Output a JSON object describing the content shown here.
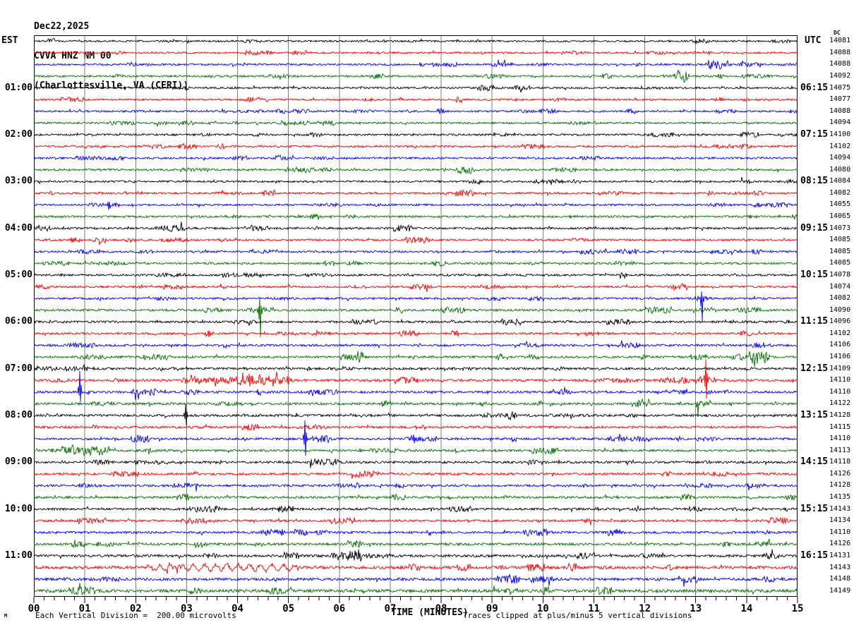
{
  "header": {
    "date": "Dec22,2025",
    "station": "CVVA HNZ NM 00",
    "location": "(Charlottesville, VA (CERI))"
  },
  "left_axis": {
    "header": "EST"
  },
  "right_axis": {
    "header": "UTC",
    "dc_header": "DC"
  },
  "x_axis": {
    "title": "TIME (MINUTES)",
    "tick_labels": [
      "00",
      "01",
      "02",
      "03",
      "04",
      "05",
      "06",
      "07",
      "08",
      "09",
      "10",
      "11",
      "12",
      "13",
      "14",
      "15"
    ],
    "minor_tick_step_minutes": 0.2
  },
  "footer": {
    "mark": "M",
    "scale_note": "Each Vertical Division =  200.00 microvolts",
    "clip_note": "Traces clipped at plus/minus 5 vertical divisions"
  },
  "colors": {
    "trace_cycle": [
      "#000000",
      "#ff0000",
      "#0000ff",
      "#007000"
    ],
    "grid": "#7d7d7d",
    "border": "#000000",
    "background": "#ffffff",
    "text": "#000000"
  },
  "chart_data": {
    "type": "line",
    "subtype": "helicorder-seismogram",
    "x_range_minutes": [
      0,
      15
    ],
    "minutes_per_row": 15,
    "rows_count": 48,
    "trace_color_order": [
      "black",
      "red",
      "blue",
      "green"
    ],
    "rows": [
      {
        "dc": 14081,
        "amp": 1.3,
        "events": [
          {
            "type": "burst",
            "t0": 14.5,
            "t1": 14.85,
            "amp": 3
          }
        ]
      },
      {
        "dc": 14088,
        "amp": 1.3,
        "events": [
          {
            "type": "burst",
            "t0": 1.6,
            "t1": 1.8,
            "amp": 3.5
          },
          {
            "type": "burst",
            "t0": 12.6,
            "t1": 12.85,
            "amp": 3
          },
          {
            "type": "burst",
            "t0": 13.15,
            "t1": 13.3,
            "amp": 3
          }
        ]
      },
      {
        "dc": 14088,
        "amp": 1.3,
        "events": [
          {
            "type": "burst",
            "t0": 11.8,
            "t1": 11.95,
            "amp": 3
          },
          {
            "type": "burst",
            "t0": 13.25,
            "t1": 13.7,
            "amp": 3.5
          }
        ]
      },
      {
        "dc": 14092,
        "amp": 1.3,
        "events": [
          {
            "type": "burst",
            "t0": 1.5,
            "t1": 1.7,
            "amp": 3
          },
          {
            "type": "burst",
            "t0": 12.3,
            "t1": 12.85,
            "amp": 3
          }
        ]
      },
      {
        "dc": 14075,
        "est": "01:00",
        "utc": "06:15",
        "amp": 1.3,
        "events": [
          {
            "type": "burst",
            "t0": 11.9,
            "t1": 12.3,
            "amp": 2.5
          }
        ]
      },
      {
        "dc": 14077,
        "amp": 1.3,
        "events": [
          {
            "type": "burst",
            "t0": 13.35,
            "t1": 13.55,
            "amp": 4
          },
          {
            "type": "burst",
            "t0": 13.9,
            "t1": 14.05,
            "amp": 3
          }
        ]
      },
      {
        "dc": 14088,
        "amp": 1.3,
        "events": [
          {
            "type": "burst",
            "t0": 13.4,
            "t1": 13.8,
            "amp": 3
          }
        ]
      },
      {
        "dc": 14094,
        "amp": 1.3,
        "events": []
      },
      {
        "dc": 14100,
        "est": "02:00",
        "utc": "07:15",
        "amp": 1.35,
        "events": [
          {
            "type": "burst",
            "t0": 9.0,
            "t1": 9.3,
            "amp": 2.5
          }
        ]
      },
      {
        "dc": 14102,
        "amp": 1.4,
        "events": [
          {
            "type": "burst",
            "t0": 13.3,
            "t1": 13.75,
            "amp": 3.5
          }
        ]
      },
      {
        "dc": 14094,
        "amp": 1.4,
        "events": []
      },
      {
        "dc": 14080,
        "amp": 1.4,
        "events": [
          {
            "type": "burst",
            "t0": 8.3,
            "t1": 8.6,
            "amp": 3
          }
        ]
      },
      {
        "dc": 14084,
        "est": "03:00",
        "utc": "08:15",
        "amp": 1.4,
        "events": [
          {
            "type": "burst",
            "t0": 13.9,
            "t1": 14.1,
            "amp": 3
          }
        ]
      },
      {
        "dc": 14082,
        "amp": 1.4,
        "events": [
          {
            "type": "burst",
            "t0": 14.15,
            "t1": 14.35,
            "amp": 4
          }
        ]
      },
      {
        "dc": 14055,
        "amp": 1.4,
        "events": [
          {
            "type": "burst",
            "t0": 1.45,
            "t1": 1.6,
            "amp": 4
          },
          {
            "type": "burst",
            "t0": 13.2,
            "t1": 13.4,
            "amp": 3.5
          }
        ]
      },
      {
        "dc": 14065,
        "amp": 1.4,
        "events": [
          {
            "type": "burst",
            "t0": 14.0,
            "t1": 14.2,
            "amp": 3.5
          }
        ]
      },
      {
        "dc": 14073,
        "est": "04:00",
        "utc": "09:15",
        "amp": 1.45,
        "events": [
          {
            "type": "burst",
            "t0": 0.0,
            "t1": 0.35,
            "amp": 5
          }
        ]
      },
      {
        "dc": 14085,
        "amp": 1.4,
        "events": []
      },
      {
        "dc": 14085,
        "amp": 1.4,
        "events": []
      },
      {
        "dc": 14085,
        "amp": 1.4,
        "events": [
          {
            "type": "burst",
            "t0": 8.8,
            "t1": 9.0,
            "amp": 3
          }
        ]
      },
      {
        "dc": 14078,
        "est": "05:00",
        "utc": "10:15",
        "amp": 1.45,
        "events": []
      },
      {
        "dc": 14074,
        "amp": 1.45,
        "events": [
          {
            "type": "burst",
            "t0": 0.05,
            "t1": 0.3,
            "amp": 4
          }
        ]
      },
      {
        "dc": 14082,
        "amp": 1.5,
        "events": [
          {
            "type": "burst",
            "t0": 4.6,
            "t1": 5.1,
            "amp": 2.5
          },
          {
            "type": "burst",
            "t0": 12.9,
            "t1": 13.3,
            "amp": 4
          },
          {
            "type": "spike",
            "t": 13.12,
            "up": 10,
            "down": 32
          }
        ]
      },
      {
        "dc": 14090,
        "amp": 1.5,
        "events": [
          {
            "type": "burst",
            "t0": 4.2,
            "t1": 4.7,
            "amp": 5
          },
          {
            "type": "spike",
            "t": 4.44,
            "up": 18,
            "down": 38
          },
          {
            "type": "burst",
            "t0": 12.95,
            "t1": 13.35,
            "amp": 5
          }
        ]
      },
      {
        "dc": 14096,
        "est": "06:00",
        "utc": "11:15",
        "amp": 1.5,
        "events": [
          {
            "type": "burst",
            "t0": 0.25,
            "t1": 0.7,
            "amp": 2.5
          }
        ]
      },
      {
        "dc": 14102,
        "amp": 1.55,
        "events": [
          {
            "type": "burst",
            "t0": 3.35,
            "t1": 3.6,
            "amp": 4
          },
          {
            "type": "burst",
            "t0": 10.85,
            "t1": 11.1,
            "amp": 4
          },
          {
            "type": "burst",
            "t0": 13.85,
            "t1": 14.1,
            "amp": 5
          }
        ]
      },
      {
        "dc": 14106,
        "amp": 1.55,
        "events": [
          {
            "type": "burst",
            "t0": 3.6,
            "t1": 3.9,
            "amp": 3
          },
          {
            "type": "burst",
            "t0": 14.1,
            "t1": 14.35,
            "amp": 5
          }
        ]
      },
      {
        "dc": 14106,
        "amp": 1.6,
        "events": [
          {
            "type": "burst",
            "t0": 6.3,
            "t1": 6.6,
            "amp": 3
          },
          {
            "type": "burst",
            "t0": 14.05,
            "t1": 14.45,
            "amp": 12
          }
        ]
      },
      {
        "dc": 14109,
        "est": "07:00",
        "utc": "12:15",
        "amp": 1.6,
        "events": [
          {
            "type": "burst",
            "t0": 0.0,
            "t1": 0.45,
            "amp": 4
          },
          {
            "type": "burst",
            "t0": 8.4,
            "t1": 8.7,
            "amp": 3
          }
        ]
      },
      {
        "dc": 14110,
        "amp": 1.7,
        "events": [
          {
            "type": "burst",
            "t0": 2.9,
            "t1": 5.1,
            "amp": 7
          },
          {
            "type": "burst",
            "t0": 4.0,
            "t1": 4.8,
            "amp": 9
          },
          {
            "type": "burst",
            "t0": 11.0,
            "t1": 12.0,
            "amp": 4
          },
          {
            "type": "burst",
            "t0": 12.95,
            "t1": 13.4,
            "amp": 6
          },
          {
            "type": "spike",
            "t": 13.2,
            "up": 30,
            "down": 26
          }
        ]
      },
      {
        "dc": 14110,
        "amp": 1.6,
        "events": [
          {
            "type": "spike",
            "t": 0.9,
            "up": 30,
            "down": 14
          },
          {
            "type": "burst",
            "t0": 6.6,
            "t1": 6.9,
            "amp": 3
          },
          {
            "type": "burst",
            "t0": 12.55,
            "t1": 12.85,
            "amp": 5
          },
          {
            "type": "burst",
            "t0": 13.5,
            "t1": 13.7,
            "amp": 4
          }
        ]
      },
      {
        "dc": 14122,
        "amp": 1.6,
        "events": [
          {
            "type": "burst",
            "t0": 11.75,
            "t1": 12.1,
            "amp": 8
          },
          {
            "type": "spike",
            "t": 13.03,
            "up": 3,
            "down": 15
          }
        ]
      },
      {
        "dc": 14128,
        "est": "08:00",
        "utc": "13:15",
        "amp": 1.65,
        "events": [
          {
            "type": "spike",
            "t": 2.98,
            "up": 16,
            "down": 14
          },
          {
            "type": "burst",
            "t0": 8.8,
            "t1": 9.5,
            "amp": 4
          },
          {
            "type": "burst",
            "t0": 11.5,
            "t1": 12.0,
            "amp": 3.5
          }
        ]
      },
      {
        "dc": 14115,
        "amp": 1.6,
        "events": [
          {
            "type": "burst",
            "t0": 1.1,
            "t1": 1.3,
            "amp": 4
          },
          {
            "type": "burst",
            "t0": 3.0,
            "t1": 3.2,
            "amp": 4
          }
        ]
      },
      {
        "dc": 14110,
        "amp": 1.6,
        "events": [
          {
            "type": "spike",
            "t": 5.32,
            "up": 26,
            "down": 24
          },
          {
            "type": "burst",
            "t0": 7.3,
            "t1": 7.6,
            "amp": 4
          }
        ]
      },
      {
        "dc": 14113,
        "amp": 1.6,
        "events": [
          {
            "type": "burst",
            "t0": 0.55,
            "t1": 1.5,
            "amp": 9
          },
          {
            "type": "burst",
            "t0": 2.2,
            "t1": 2.4,
            "amp": 4
          }
        ]
      },
      {
        "dc": 14118,
        "est": "09:00",
        "utc": "14:15",
        "amp": 1.6,
        "events": [
          {
            "type": "burst",
            "t0": 13.15,
            "t1": 13.35,
            "amp": 3
          }
        ]
      },
      {
        "dc": 14126,
        "amp": 1.6,
        "events": [
          {
            "type": "burst",
            "t0": 3.05,
            "t1": 3.25,
            "amp": 4
          }
        ]
      },
      {
        "dc": 14128,
        "amp": 1.6,
        "events": [
          {
            "type": "burst",
            "t0": 7.05,
            "t1": 7.3,
            "amp": 4
          }
        ]
      },
      {
        "dc": 14135,
        "amp": 1.6,
        "events": [
          {
            "type": "burst",
            "t0": 9.2,
            "t1": 9.5,
            "amp": 3
          }
        ]
      },
      {
        "dc": 14143,
        "est": "10:00",
        "utc": "15:15",
        "amp": 1.6,
        "events": []
      },
      {
        "dc": 14134,
        "amp": 1.6,
        "events": [
          {
            "type": "burst",
            "t0": 0.35,
            "t1": 0.55,
            "amp": 3.5
          }
        ]
      },
      {
        "dc": 14110,
        "amp": 1.7,
        "events": []
      },
      {
        "dc": 14126,
        "amp": 1.7,
        "events": [
          {
            "type": "burst",
            "t0": 14.2,
            "t1": 14.45,
            "amp": 4
          }
        ]
      },
      {
        "dc": 14131,
        "est": "11:00",
        "utc": "16:15",
        "amp": 1.75,
        "events": [
          {
            "type": "burst",
            "t0": 5.85,
            "t1": 6.45,
            "amp": 6
          }
        ]
      },
      {
        "dc": 14143,
        "amp": 2.1,
        "events": [
          {
            "type": "wave",
            "t0": 2.2,
            "t1": 5.2,
            "amp": 4.5,
            "period": 0.22
          }
        ]
      },
      {
        "dc": 14148,
        "amp": 1.95,
        "events": [
          {
            "type": "burst",
            "t0": 9.3,
            "t1": 9.6,
            "amp": 3.5
          }
        ]
      },
      {
        "dc": 14149,
        "amp": 2.2,
        "events": [
          {
            "type": "burst",
            "t0": 9.0,
            "t1": 9.5,
            "amp": 4
          }
        ]
      }
    ]
  }
}
